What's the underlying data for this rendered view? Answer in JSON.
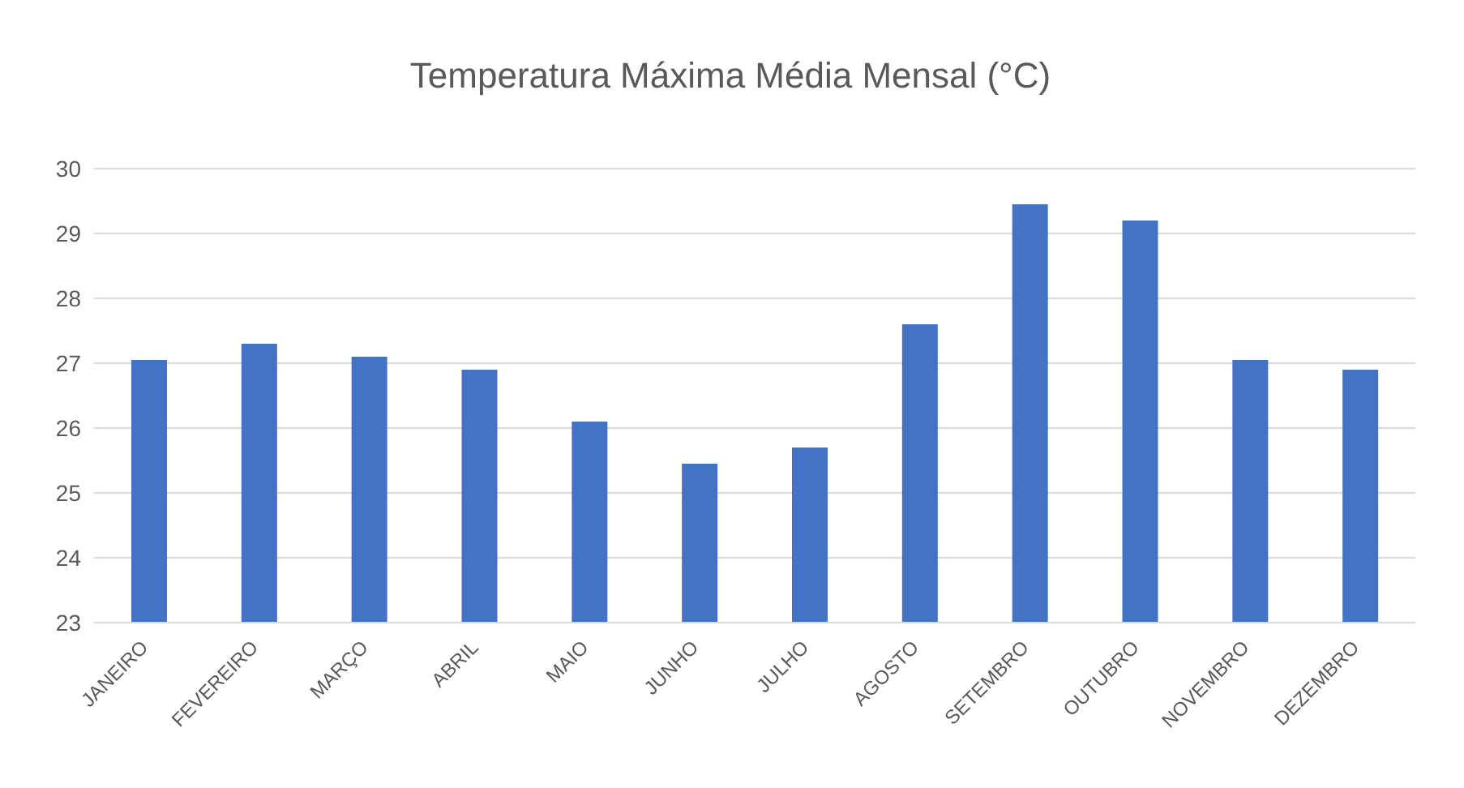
{
  "chart_data": {
    "type": "bar",
    "title": "Temperatura Máxima Média Mensal (°C)",
    "categories": [
      "JANEIRO",
      "FEVEREIRO",
      "MARÇO",
      "ABRIL",
      "MAIO",
      "JUNHO",
      "JULHO",
      "AGOSTO",
      "SETEMBRO",
      "OUTUBRO",
      "NOVEMBRO",
      "DEZEMBRO"
    ],
    "values": [
      27.05,
      27.3,
      27.1,
      26.9,
      26.1,
      25.45,
      25.7,
      27.6,
      29.45,
      29.2,
      27.05,
      26.9
    ],
    "color": "#4472c4",
    "ylim": [
      23,
      30
    ],
    "yticks": [
      23,
      24,
      25,
      26,
      27,
      28,
      29,
      30
    ],
    "grid": "y"
  }
}
